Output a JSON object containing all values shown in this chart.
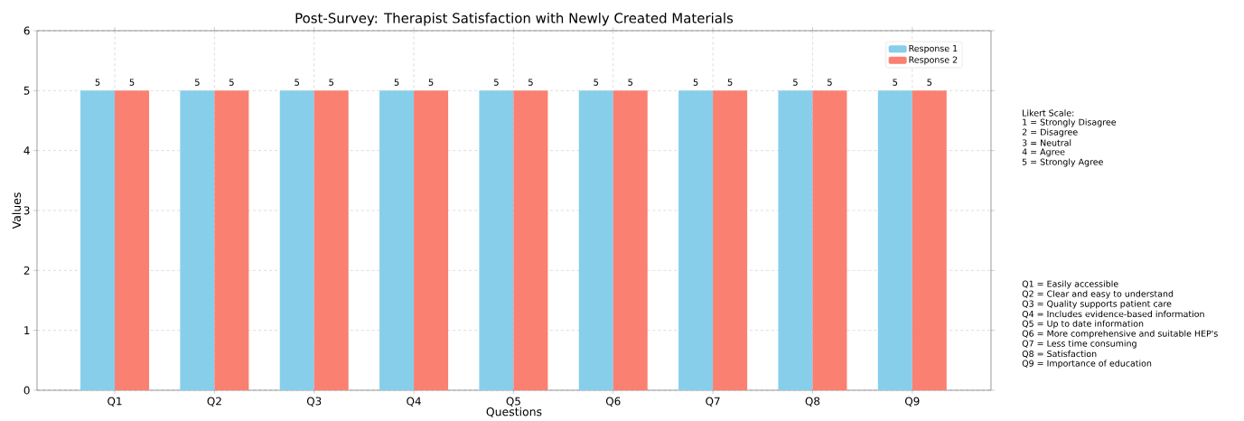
{
  "chart_data": {
    "type": "bar",
    "title": "Post-Survey: Therapist Satisfaction with Newly Created Materials",
    "xlabel": "Questions",
    "ylabel": "Values",
    "categories": [
      "Q1",
      "Q2",
      "Q3",
      "Q4",
      "Q5",
      "Q6",
      "Q7",
      "Q8",
      "Q9"
    ],
    "series": [
      {
        "name": "Response 1",
        "color": "#87ceeb",
        "values": [
          5,
          5,
          5,
          5,
          5,
          5,
          5,
          5,
          5
        ]
      },
      {
        "name": "Response 2",
        "color": "#fa8072",
        "values": [
          5,
          5,
          5,
          5,
          5,
          5,
          5,
          5,
          5
        ]
      }
    ],
    "ylim": [
      0,
      6
    ],
    "yticks": [
      0,
      1,
      2,
      3,
      4,
      5,
      6
    ],
    "grid": true,
    "legend": "top right",
    "data_labels": true,
    "annotations": [
      "Likert Scale:",
      "1 = Strongly Disagree",
      "2 = Disagree",
      "3 = Neutral",
      "4 = Agree",
      "5 = Strongly Agree",
      "Q1 = Easily accessible",
      "Q2 = Clear and easy to understand",
      "Q3 = Quality supports patient care",
      "Q4 = Includes evidence-based information",
      "Q5 = Up to date information",
      "Q6 = More comprehensive and suitable HEP's",
      "Q7 = Less time consuming",
      "Q8 = Satisfaction",
      "Q9 = Importance of education"
    ]
  }
}
